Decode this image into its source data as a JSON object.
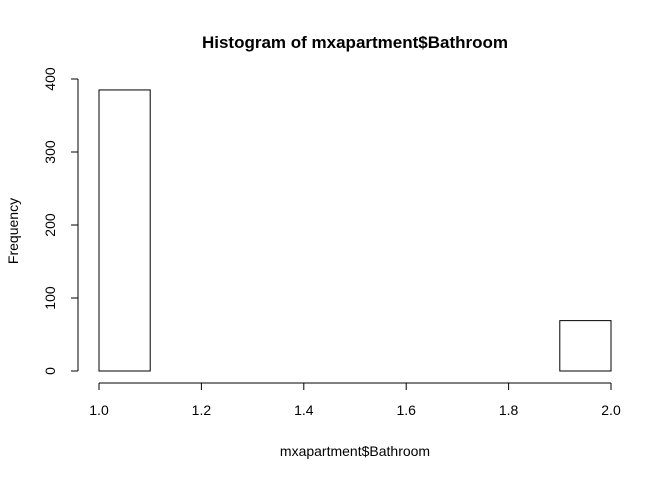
{
  "chart_data": {
    "type": "bar",
    "title": "Histogram of mxapartment$Bathroom",
    "xlabel": "mxapartment$Bathroom",
    "ylabel": "Frequency",
    "bins": [
      {
        "start": 1.0,
        "end": 1.1,
        "count": 385
      },
      {
        "start": 1.1,
        "end": 1.2,
        "count": 0
      },
      {
        "start": 1.2,
        "end": 1.3,
        "count": 0
      },
      {
        "start": 1.3,
        "end": 1.4,
        "count": 0
      },
      {
        "start": 1.4,
        "end": 1.5,
        "count": 0
      },
      {
        "start": 1.5,
        "end": 1.6,
        "count": 0
      },
      {
        "start": 1.6,
        "end": 1.7,
        "count": 0
      },
      {
        "start": 1.7,
        "end": 1.8,
        "count": 0
      },
      {
        "start": 1.8,
        "end": 1.9,
        "count": 0
      },
      {
        "start": 1.9,
        "end": 2.0,
        "count": 69
      }
    ],
    "xlim": [
      1.0,
      2.0
    ],
    "ylim": [
      0,
      400
    ],
    "x_ticks": [
      "1.0",
      "1.2",
      "1.4",
      "1.6",
      "1.8",
      "2.0"
    ],
    "x_tick_values": [
      1.0,
      1.2,
      1.4,
      1.6,
      1.8,
      2.0
    ],
    "y_ticks": [
      "0",
      "100",
      "200",
      "300",
      "400"
    ],
    "y_tick_values": [
      0,
      100,
      200,
      300,
      400
    ],
    "grid": false,
    "legend": "none"
  }
}
